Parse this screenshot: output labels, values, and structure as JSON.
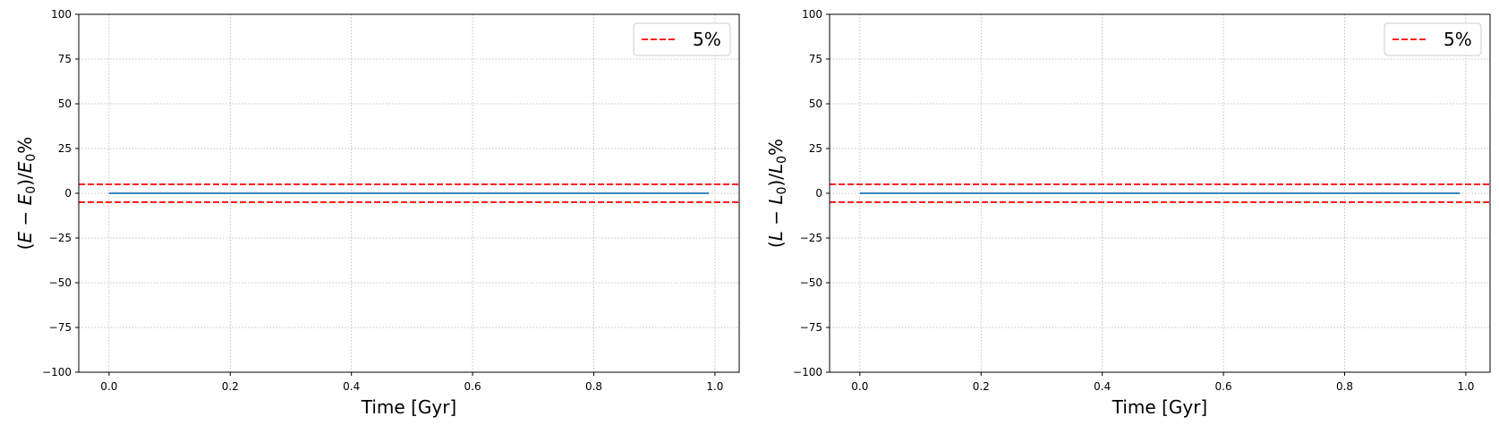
{
  "chart_data": [
    {
      "type": "line",
      "title": "",
      "xlabel": "Time [Gyr]",
      "ylabel": "(E − E₀)/E₀%",
      "ylabel_parts": [
        {
          "t": "("
        },
        {
          "t": "E",
          "i": true
        },
        {
          "t": " − "
        },
        {
          "t": "E",
          "i": true
        },
        {
          "t": "0",
          "sub": true
        },
        {
          "t": ")/"
        },
        {
          "t": "E",
          "i": true
        },
        {
          "t": "0",
          "sub": true
        },
        {
          "t": "%"
        }
      ],
      "xlim": [
        -0.05,
        1.04
      ],
      "ylim": [
        -100,
        100
      ],
      "xticks": [
        0.0,
        0.2,
        0.4,
        0.6,
        0.8,
        1.0
      ],
      "xtick_labels": [
        "0.0",
        "0.2",
        "0.4",
        "0.6",
        "0.8",
        "1.0"
      ],
      "yticks": [
        -100,
        -75,
        -50,
        -25,
        0,
        25,
        50,
        75,
        100
      ],
      "ytick_labels": [
        "−100",
        "−75",
        "−50",
        "−25",
        "0",
        "25",
        "50",
        "75",
        "100"
      ],
      "grid": true,
      "legend_position": "top-right",
      "series": [
        {
          "x": [
            0.0,
            0.99
          ],
          "y": [
            0,
            0
          ],
          "color": "#1f77b4",
          "style": "solid"
        }
      ],
      "hlines": [
        {
          "name": "5%",
          "y": 5,
          "color": "#ff0000",
          "style": "dashed"
        },
        {
          "y": -5,
          "color": "#ff0000",
          "style": "dashed"
        }
      ],
      "legend": [
        {
          "label": "5%",
          "color": "#ff0000",
          "style": "dashed"
        }
      ]
    },
    {
      "type": "line",
      "title": "",
      "xlabel": "Time [Gyr]",
      "ylabel": "(L − L₀)/L₀%",
      "ylabel_parts": [
        {
          "t": "("
        },
        {
          "t": "L",
          "i": true
        },
        {
          "t": " − "
        },
        {
          "t": "L",
          "i": true
        },
        {
          "t": "0",
          "sub": true
        },
        {
          "t": ")/"
        },
        {
          "t": "L",
          "i": true
        },
        {
          "t": "0",
          "sub": true
        },
        {
          "t": "%"
        }
      ],
      "xlim": [
        -0.05,
        1.04
      ],
      "ylim": [
        -100,
        100
      ],
      "xticks": [
        0.0,
        0.2,
        0.4,
        0.6,
        0.8,
        1.0
      ],
      "xtick_labels": [
        "0.0",
        "0.2",
        "0.4",
        "0.6",
        "0.8",
        "1.0"
      ],
      "yticks": [
        -100,
        -75,
        -50,
        -25,
        0,
        25,
        50,
        75,
        100
      ],
      "ytick_labels": [
        "−100",
        "−75",
        "−50",
        "−25",
        "0",
        "25",
        "50",
        "75",
        "100"
      ],
      "grid": true,
      "legend_position": "top-right",
      "series": [
        {
          "x": [
            0.0,
            0.99
          ],
          "y": [
            0,
            0
          ],
          "color": "#1f77b4",
          "style": "solid"
        }
      ],
      "hlines": [
        {
          "name": "5%",
          "y": 5,
          "color": "#ff0000",
          "style": "dashed"
        },
        {
          "y": -5,
          "color": "#ff0000",
          "style": "dashed"
        }
      ],
      "legend": [
        {
          "label": "5%",
          "color": "#ff0000",
          "style": "dashed"
        }
      ]
    }
  ]
}
